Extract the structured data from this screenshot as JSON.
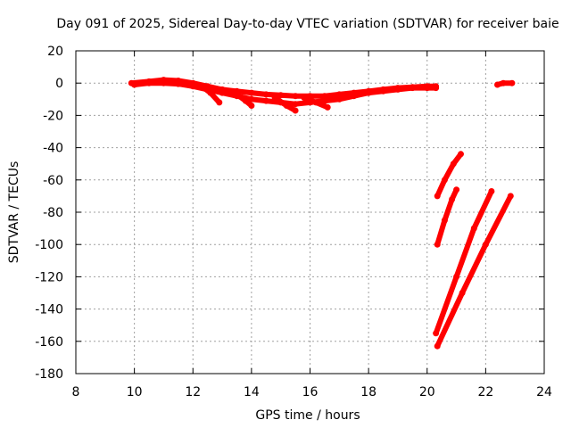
{
  "chart_data": {
    "type": "scatter",
    "title": "Day 091 of 2025, Sidereal Day-to-day VTEC variation (SDTVAR) for receiver baie",
    "xlabel": "GPS time / hours",
    "ylabel": "SDTVAR / TECUs",
    "xlim": [
      8,
      24
    ],
    "ylim": [
      -180,
      20
    ],
    "xticks": [
      8,
      10,
      12,
      14,
      16,
      18,
      20,
      22,
      24
    ],
    "yticks": [
      20,
      0,
      -20,
      -40,
      -60,
      -80,
      -100,
      -120,
      -140,
      -160,
      -180
    ],
    "grid": true,
    "legend": "none",
    "series_color": "#ff0000",
    "series": [
      {
        "name": "track-main-upper",
        "x": [
          9.9,
          10.5,
          11.0,
          11.5,
          12.0,
          12.5,
          13.0,
          13.5,
          14.0,
          14.5,
          15.0,
          15.5,
          16.0,
          16.5,
          17.0,
          17.5,
          18.0,
          18.5,
          19.0,
          19.5,
          20.0,
          20.3
        ],
        "y": [
          0,
          1,
          2,
          1.5,
          0,
          -2,
          -4,
          -5,
          -6,
          -7,
          -7.5,
          -8,
          -8,
          -8,
          -7,
          -6,
          -5,
          -4,
          -3,
          -2.5,
          -2,
          -2
        ]
      },
      {
        "name": "track-main-lower",
        "x": [
          10.0,
          10.5,
          11.0,
          11.5,
          12.0,
          12.5,
          13.0,
          13.5,
          14.0,
          14.5,
          15.0,
          15.5,
          16.0,
          16.5,
          17.0,
          17.5,
          18.0,
          18.5,
          19.0,
          19.5,
          20.0,
          20.3
        ],
        "y": [
          -1,
          0,
          0,
          -0.5,
          -2,
          -4,
          -6,
          -8,
          -10,
          -11,
          -12,
          -13,
          -12,
          -11,
          -10,
          -8,
          -6,
          -5,
          -4,
          -3,
          -3,
          -3
        ]
      },
      {
        "name": "track-dip-1",
        "x": [
          12.3,
          12.6,
          12.9
        ],
        "y": [
          -2,
          -6,
          -12
        ]
      },
      {
        "name": "track-dip-2",
        "x": [
          13.5,
          13.8,
          14.0
        ],
        "y": [
          -7,
          -11,
          -14
        ]
      },
      {
        "name": "track-dip-3",
        "x": [
          14.8,
          15.2,
          15.5
        ],
        "y": [
          -9,
          -14,
          -17
        ]
      },
      {
        "name": "track-dip-4",
        "x": [
          15.8,
          16.2,
          16.6
        ],
        "y": [
          -9,
          -12,
          -15
        ]
      },
      {
        "name": "track-late-segment",
        "x": [
          22.4,
          22.6,
          22.9
        ],
        "y": [
          -1,
          0,
          0
        ]
      },
      {
        "name": "track-steep-1",
        "x": [
          20.35,
          20.6,
          20.9,
          21.15
        ],
        "y": [
          -70,
          -60,
          -50,
          -44
        ]
      },
      {
        "name": "track-steep-2",
        "x": [
          20.35,
          20.6,
          20.85,
          21.0
        ],
        "y": [
          -100,
          -85,
          -72,
          -66
        ]
      },
      {
        "name": "track-long-1",
        "x": [
          20.3,
          21.0,
          21.6,
          22.2
        ],
        "y": [
          -155,
          -120,
          -90,
          -67
        ]
      },
      {
        "name": "track-long-2",
        "x": [
          20.35,
          21.2,
          22.0,
          22.85
        ],
        "y": [
          -163,
          -130,
          -100,
          -70
        ]
      }
    ]
  }
}
